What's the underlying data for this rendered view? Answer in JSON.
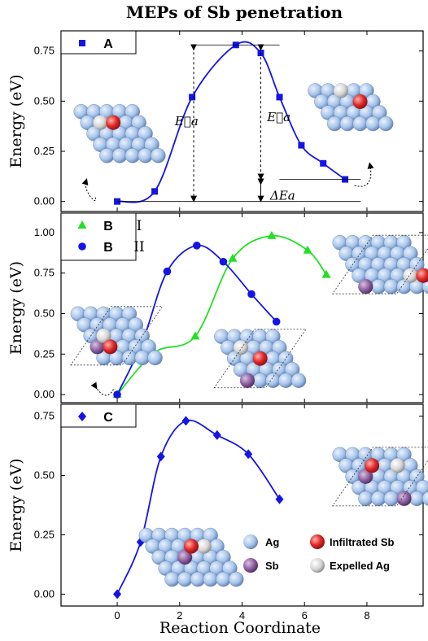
{
  "figure": {
    "title": "MEPs of Sb penetration",
    "xlabel": "Reaction Coordinate",
    "ylabel": "Energy (eV)"
  },
  "colors": {
    "blue": "#1414e6",
    "green": "#22e022",
    "ag": "#a7c4ea",
    "sb": "#8a5c9c",
    "infiltrated": "#e02a2a",
    "expelled": "#d6d6d6"
  },
  "chart_data": [
    {
      "type": "line",
      "panel": "A",
      "xlim": [
        -1.8,
        9.8
      ],
      "ylim": [
        -0.05,
        0.85
      ],
      "x_ticks": [
        0,
        2,
        4,
        6,
        8
      ],
      "y_ticks": [
        "0.00",
        "0.25",
        "0.50",
        "0.75"
      ],
      "series": [
        {
          "name": "A",
          "color": "#1414e6",
          "marker": "square",
          "x": [
            0,
            1.2,
            2.4,
            3.8,
            4.6,
            5.2,
            5.9,
            6.6,
            7.3
          ],
          "y": [
            0.0,
            0.05,
            0.52,
            0.78,
            0.74,
            0.52,
            0.28,
            0.19,
            0.11
          ]
        }
      ],
      "annotations": {
        "forward_barrier": "E⃗a",
        "reverse_barrier": "E⃖a",
        "delta": "ΔEa"
      }
    },
    {
      "type": "line",
      "panel": "B",
      "xlim": [
        -1.8,
        9.8
      ],
      "ylim": [
        -0.05,
        1.12
      ],
      "x_ticks": [
        0,
        2,
        4,
        6,
        8
      ],
      "y_ticks": [
        "0.00",
        "0.25",
        "0.50",
        "0.75",
        "1.00"
      ],
      "series": [
        {
          "name": "B",
          "label": "I",
          "color": "#22e022",
          "marker": "triangle",
          "x": [
            0,
            1.2,
            2.5,
            3.7,
            4.95,
            6.1,
            6.7
          ],
          "y": [
            0.0,
            0.26,
            0.36,
            0.84,
            0.98,
            0.89,
            0.74
          ]
        },
        {
          "name": "B",
          "label": "II",
          "color": "#1414e6",
          "marker": "circle",
          "x": [
            0,
            0.8,
            1.6,
            2.55,
            3.4,
            4.3,
            5.1
          ],
          "y": [
            0.0,
            0.32,
            0.76,
            0.92,
            0.82,
            0.62,
            0.45
          ]
        }
      ]
    },
    {
      "type": "line",
      "panel": "C",
      "xlim": [
        -1.8,
        9.8
      ],
      "ylim": [
        -0.05,
        0.8
      ],
      "x_ticks": [
        0,
        2,
        4,
        6,
        8
      ],
      "x_tick_labels": [
        "0",
        "2",
        "4",
        "6",
        "8"
      ],
      "y_ticks": [
        "0.00",
        "0.25",
        "0.50",
        "0.75"
      ],
      "series": [
        {
          "name": "C",
          "color": "#1414e6",
          "marker": "diamond",
          "x": [
            0,
            0.75,
            1.4,
            2.2,
            3.2,
            4.2,
            5.2
          ],
          "y": [
            0.0,
            0.22,
            0.58,
            0.73,
            0.67,
            0.59,
            0.4
          ]
        }
      ]
    }
  ],
  "key": {
    "ag": "Ag",
    "sb": "Sb",
    "infiltrated": "Infiltrated Sb",
    "expelled": "Expelled Ag"
  }
}
